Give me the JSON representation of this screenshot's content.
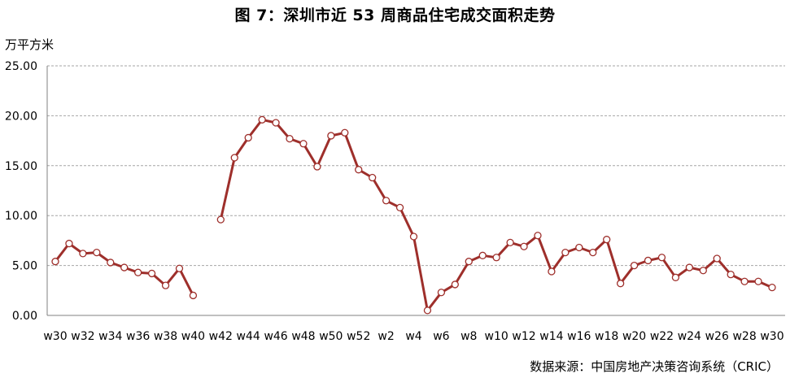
{
  "chart_data": {
    "type": "line",
    "title": "图 7：深圳市近 53 周商品住宅成交面积走势",
    "ylabel": "万平方米",
    "source": "数据来源：中国房地产决策咨询系统（CRIC）",
    "ylim": [
      0,
      25
    ],
    "yticks": [
      "0.00",
      "5.00",
      "10.00",
      "15.00",
      "20.00",
      "25.00"
    ],
    "xtick_labels": [
      "w30",
      "w32",
      "w34",
      "w36",
      "w38",
      "w40",
      "w42",
      "w44",
      "w46",
      "w48",
      "w50",
      "w52",
      "w2",
      "w4",
      "w6",
      "w8",
      "w10",
      "w12",
      "w14",
      "w16",
      "w18",
      "w20",
      "w22",
      "w24",
      "w26",
      "w28",
      "w30"
    ],
    "grid": true,
    "colors": {
      "line": "#9e2f2b",
      "marker_fill": "#ffffff",
      "grid": "#a6a6a6"
    },
    "series": [
      {
        "values": [
          5.4,
          7.2,
          6.2,
          6.3,
          5.3,
          4.8,
          4.3,
          4.2,
          3.0,
          4.7,
          2.0,
          null,
          9.6,
          15.8,
          17.8,
          19.6,
          19.3,
          17.7,
          17.2,
          14.9,
          18.0,
          18.3,
          14.6,
          13.8,
          11.5,
          10.8,
          7.9,
          0.5,
          2.3,
          3.1,
          5.4,
          6.0,
          5.8,
          7.3,
          6.9,
          8.0,
          4.4,
          6.3,
          6.8,
          6.3,
          7.6,
          3.2,
          5.0,
          5.5,
          5.8,
          3.8,
          4.8,
          4.5,
          5.7,
          4.1,
          3.4,
          3.4,
          2.8
        ]
      }
    ]
  }
}
